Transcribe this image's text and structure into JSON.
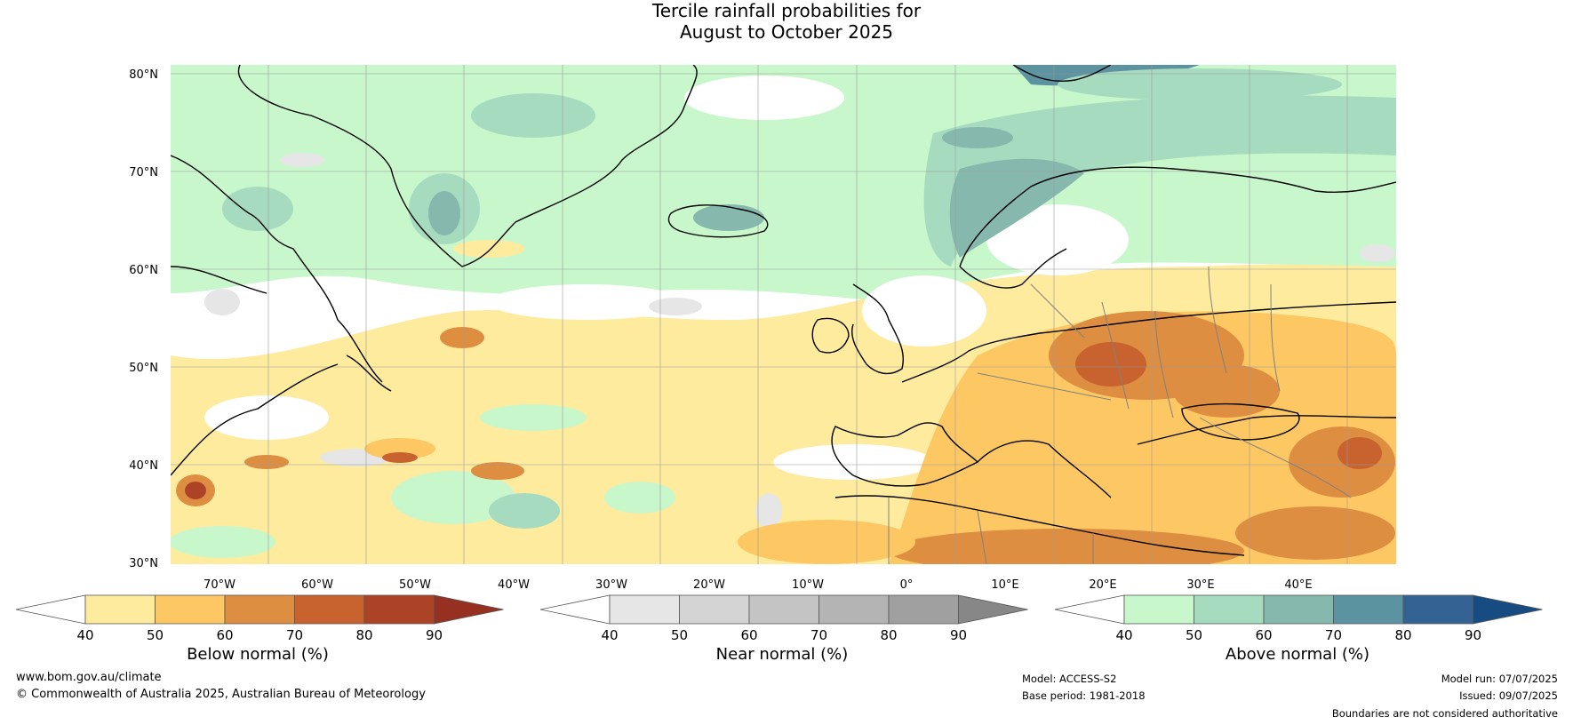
{
  "title": {
    "line1": "Tercile rainfall probabilities for",
    "line2": "August to October 2025"
  },
  "map": {
    "lat_labels": [
      "80°N",
      "70°N",
      "60°N",
      "50°N",
      "40°N",
      "30°N"
    ],
    "lon_labels": [
      "70°W",
      "60°W",
      "50°W",
      "40°W",
      "30°W",
      "20°W",
      "10°W",
      "0°",
      "10°E",
      "20°E",
      "30°E",
      "40°E"
    ],
    "colors": {
      "ocean_background": "#ffffff",
      "grid": "#9a9a9a",
      "coastline": "#000000",
      "borders": "#808080"
    }
  },
  "colorbars": [
    {
      "label": "Below normal (%)",
      "ticks": [
        "40",
        "50",
        "60",
        "70",
        "80",
        "90"
      ],
      "colors": [
        "#ffffff",
        "#feeb9e",
        "#fdc863",
        "#de8e41",
        "#c8622f",
        "#ad4326",
        "#963122"
      ]
    },
    {
      "label": "Near normal (%)",
      "ticks": [
        "40",
        "50",
        "60",
        "70",
        "80",
        "90"
      ],
      "colors": [
        "#ffffff",
        "#e6e6e6",
        "#d4d4d4",
        "#c4c4c4",
        "#b4b4b4",
        "#a0a0a0",
        "#878787"
      ]
    },
    {
      "label": "Above normal (%)",
      "ticks": [
        "40",
        "50",
        "60",
        "70",
        "80",
        "90"
      ],
      "colors": [
        "#ffffff",
        "#c8f7cb",
        "#a7dbbf",
        "#86b8ad",
        "#5c93a1",
        "#346292",
        "#174c83"
      ]
    }
  ],
  "footer": {
    "website": "www.bom.gov.au/climate",
    "copyright": "© Commonwealth of Australia 2025, Australian Bureau of Meteorology",
    "model": "Model: ACCESS-S2",
    "base_period": "Base period: 1981-2018",
    "model_run": "Model run: 07/07/2025",
    "issued": "Issued: 09/07/2025",
    "disclaimer": "Boundaries are not considered authoritative"
  }
}
